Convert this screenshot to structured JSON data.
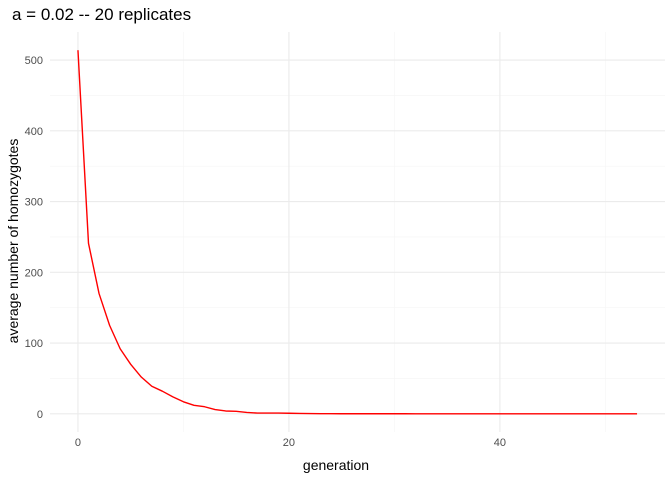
{
  "chart_data": {
    "type": "line",
    "title": "a = 0.02 -- 20 replicates",
    "xlabel": "generation",
    "ylabel": "average number of homozygotes",
    "xlim": [
      -2.65,
      55.65
    ],
    "ylim": [
      -25.7,
      539.7
    ],
    "xticks": [
      0,
      20,
      40
    ],
    "yticks": [
      0,
      100,
      200,
      300,
      400,
      500
    ],
    "grid": true,
    "legend": "none",
    "colors": {
      "line": "#ff0000",
      "grid_major": "#ebebeb",
      "grid_minor": "#f5f5f5"
    },
    "series": [
      {
        "x": [
          0,
          1,
          2,
          3,
          4,
          5,
          6,
          7,
          8,
          9,
          10,
          11,
          12,
          13,
          14,
          15,
          16,
          17,
          18,
          19,
          20,
          21,
          22,
          23,
          24,
          25,
          26,
          27,
          28,
          29,
          30,
          31,
          32,
          33,
          34,
          35,
          36,
          37,
          38,
          39,
          40,
          41,
          42,
          43,
          44,
          45,
          46,
          47,
          48,
          49,
          50,
          51,
          52,
          53
        ],
        "y": [
          514,
          241,
          170,
          125,
          92,
          70,
          52,
          39,
          32,
          24,
          17,
          12,
          10,
          6,
          4,
          3.5,
          2,
          1,
          1,
          1,
          0.8,
          0.5,
          0.3,
          0.2,
          0.2,
          0.1,
          0.1,
          0.1,
          0.1,
          0.1,
          0.1,
          0.1,
          0,
          0,
          0,
          0,
          0,
          0,
          0,
          0,
          0,
          0,
          0,
          0,
          0,
          0,
          0,
          0,
          0,
          0,
          0,
          0,
          0,
          0
        ]
      }
    ]
  }
}
